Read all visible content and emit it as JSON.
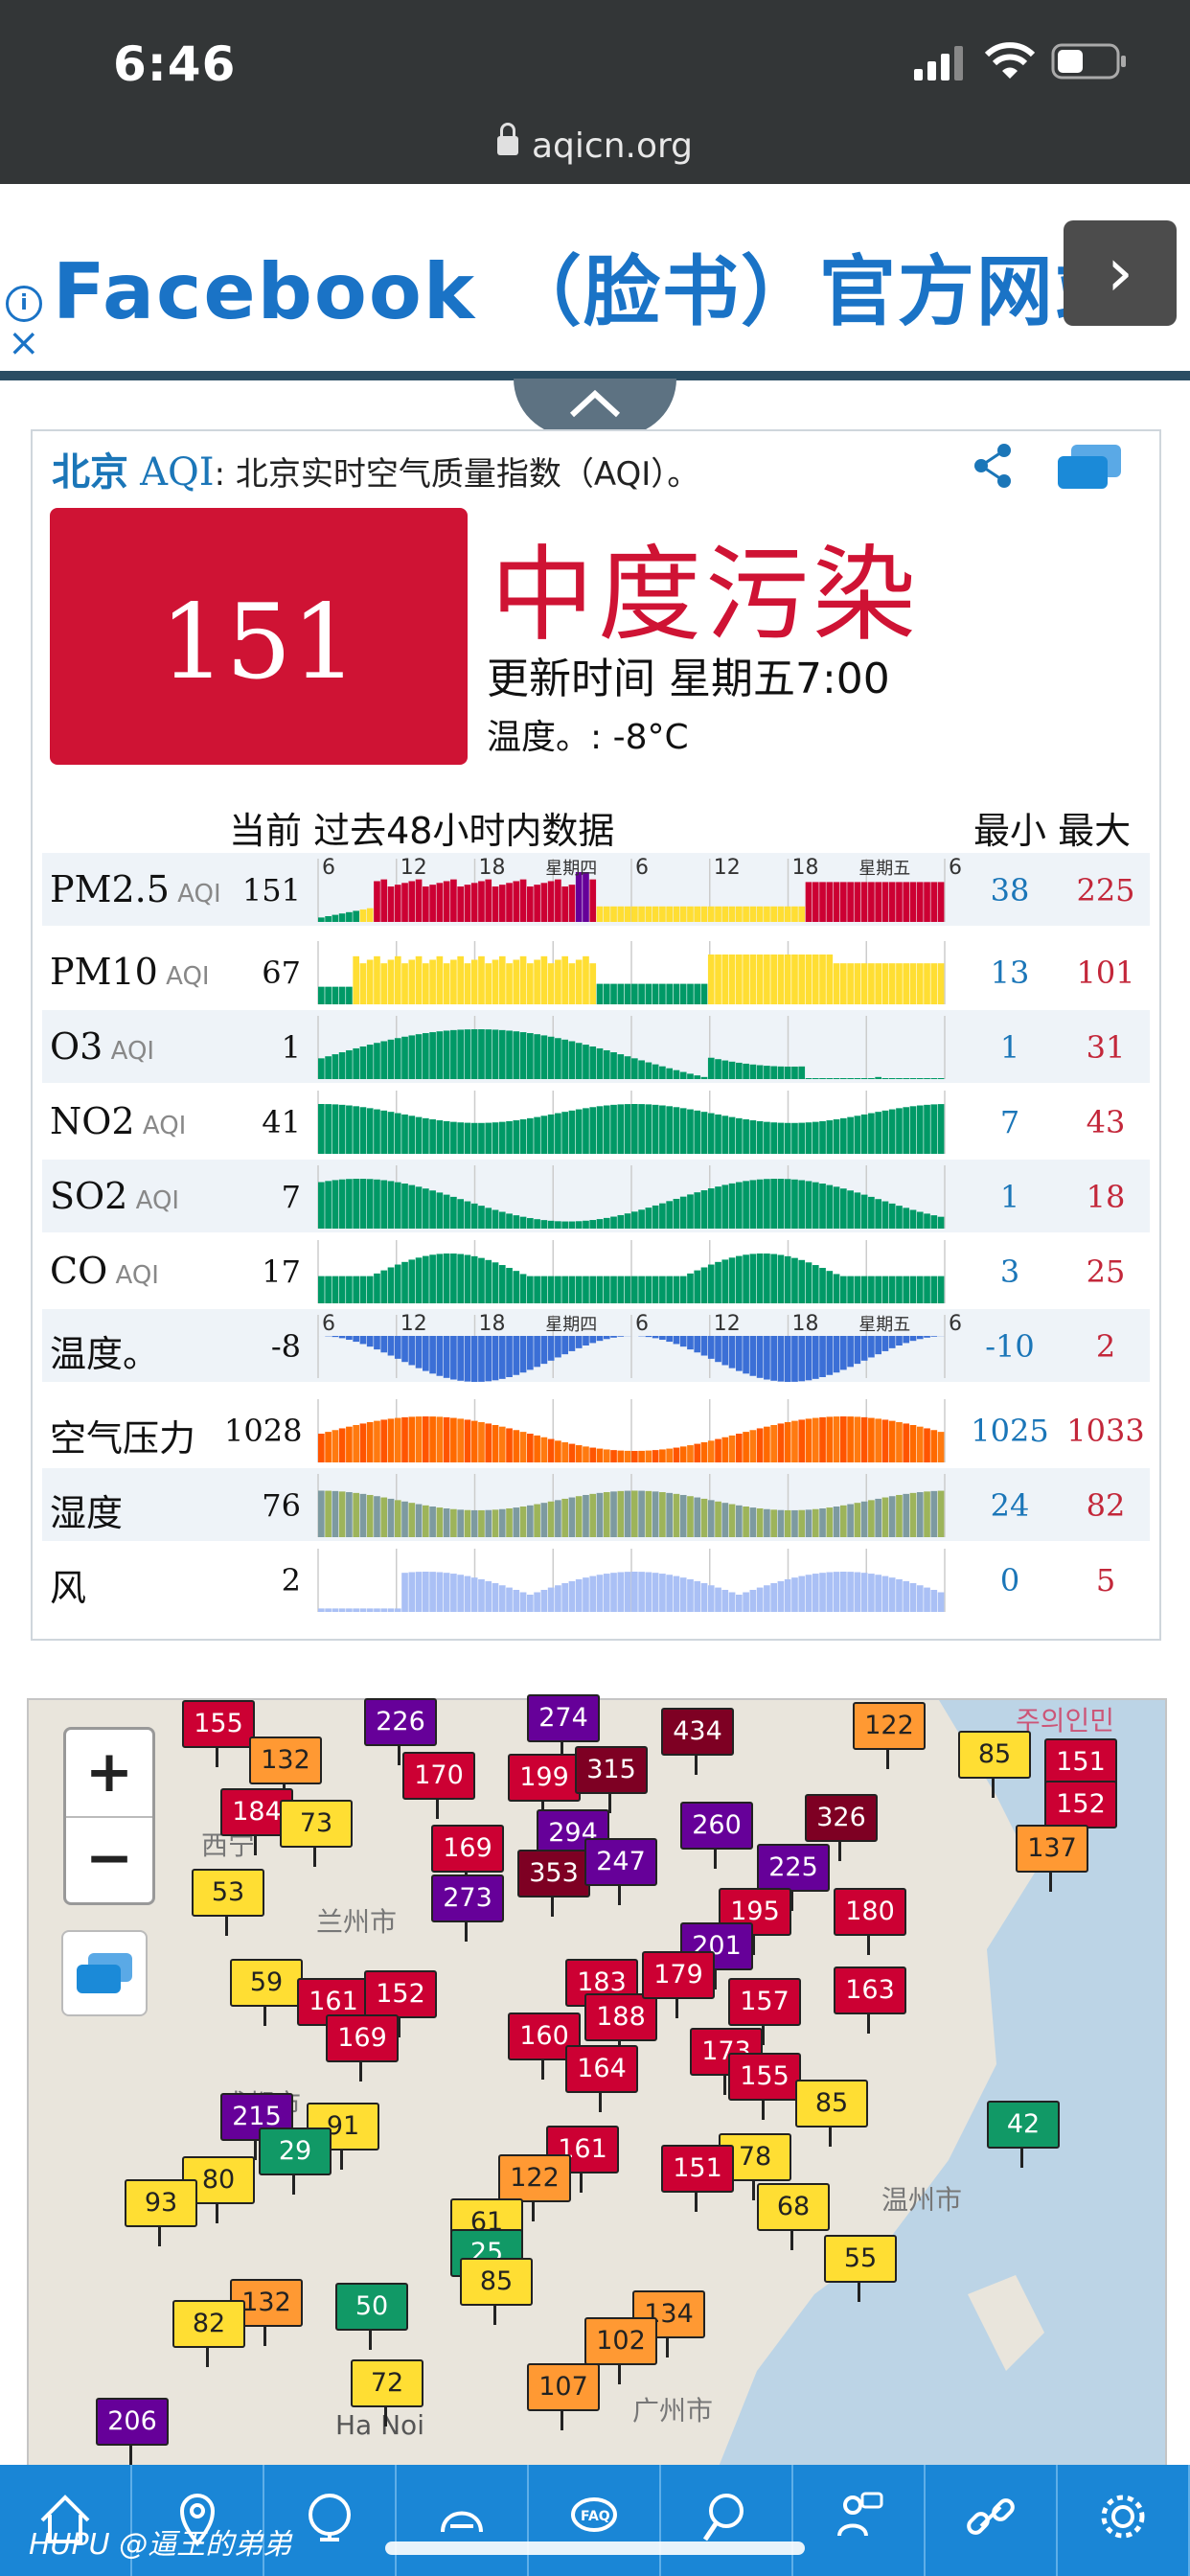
{
  "status_bar": {
    "time": "6:46",
    "url": "aqicn.org"
  },
  "ad": {
    "title": "Facebook （脸书）官方网站",
    "arrow": "›",
    "info": "i",
    "close": "×"
  },
  "card": {
    "city": "北京",
    "aqi_word": "AQI",
    "description": ": 北京实时空气质量指数（AQI）。",
    "aqi_value": "151",
    "level": "中度污染",
    "updated": "更新时间 星期五7:00",
    "temperature": "温度。: -8°C",
    "header_now": "当前 过去48小时内数据",
    "header_minmax": "最小 最大",
    "colors": {
      "aqi_red": "#cf1334",
      "link_blue": "#1b76b8"
    },
    "ticks": [
      "6",
      "12",
      "18",
      "星期四",
      "6",
      "12",
      "18",
      "星期五",
      "6"
    ]
  },
  "rows": [
    {
      "label": "PM2.5",
      "sub": "AQI",
      "current": "151",
      "min": "38",
      "max": "225"
    },
    {
      "label": "PM10",
      "sub": "AQI",
      "current": "67",
      "min": "13",
      "max": "101"
    },
    {
      "label": "O3",
      "sub": "AQI",
      "current": "1",
      "min": "1",
      "max": "31"
    },
    {
      "label": "NO2",
      "sub": "AQI",
      "current": "41",
      "min": "7",
      "max": "43"
    },
    {
      "label": "SO2",
      "sub": "AQI",
      "current": "7",
      "min": "1",
      "max": "18"
    },
    {
      "label": "CO",
      "sub": "AQI",
      "current": "17",
      "min": "3",
      "max": "25"
    },
    {
      "label": "温度。",
      "sub": "",
      "current": "-8",
      "min": "-10",
      "max": "2"
    },
    {
      "label": "空气压力",
      "sub": "",
      "current": "1028",
      "min": "1025",
      "max": "1033"
    },
    {
      "label": "湿度",
      "sub": "",
      "current": "76",
      "min": "24",
      "max": "82"
    },
    {
      "label": "风",
      "sub": "",
      "current": "2",
      "min": "0",
      "max": "5"
    }
  ],
  "map": {
    "zoom_in": "+",
    "zoom_out": "−",
    "stations": [
      "155",
      "226",
      "274",
      "434",
      "122",
      "132",
      "170",
      "199",
      "315",
      "85",
      "151",
      "184",
      "73",
      "294",
      "260",
      "326",
      "152",
      "169",
      "353",
      "247",
      "225",
      "137",
      "53",
      "273",
      "195",
      "180",
      "201",
      "59",
      "161",
      "152",
      "157",
      "163",
      "183",
      "188",
      "179",
      "169",
      "173",
      "160",
      "164",
      "215",
      "155",
      "85",
      "91",
      "78",
      "161",
      "42",
      "29",
      "80",
      "122",
      "151",
      "68",
      "93",
      "61",
      "25",
      "85",
      "132",
      "55",
      "50",
      "134",
      "102",
      "82",
      "72",
      "107",
      "206"
    ],
    "place_names": [
      "西宁",
      "兰州市",
      "成都市",
      "温州市",
      "Ha Noi",
      "广州市",
      "주의인민"
    ]
  },
  "nav": {
    "items": [
      "home-icon",
      "location-icon",
      "globe-icon",
      "health-icon",
      "faq-icon",
      "search-icon",
      "chat-icon",
      "link-icon",
      "settings-icon"
    ],
    "watermark": "HUPU @逼王的弟弟"
  }
}
